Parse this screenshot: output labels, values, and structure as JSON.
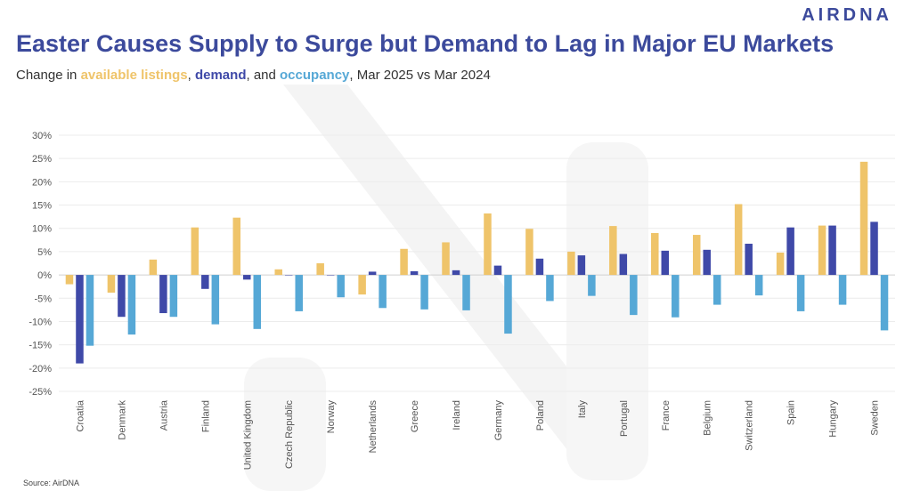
{
  "brand": {
    "logo_text": "AIRDNA"
  },
  "header": {
    "title": "Easter Causes Supply to Surge but Demand to Lag in Major EU Markets",
    "subtitle_prefix": "Change in ",
    "subtitle_listings": "available listings",
    "subtitle_sep1": ", ",
    "subtitle_demand": "demand",
    "subtitle_sep2": ", and ",
    "subtitle_occupancy": "occupancy",
    "subtitle_suffix": ", Mar 2025 vs Mar 2024"
  },
  "footer": {
    "source": "Source: AirDNA"
  },
  "colors": {
    "listings": "#efc46a",
    "demand": "#3f49a8",
    "occupancy": "#56a8d6",
    "title": "#3c4a9c"
  },
  "chart_data": {
    "type": "bar",
    "categories": [
      "Croatia",
      "Denmark",
      "Austria",
      "Finland",
      "United Kingdom",
      "Czech Republic",
      "Norway",
      "Netherlands",
      "Greece",
      "Ireland",
      "Germany",
      "Poland",
      "Italy",
      "Portugal",
      "France",
      "Belgium",
      "Switzerland",
      "Spain",
      "Hungary",
      "Sweden"
    ],
    "series": [
      {
        "name": "available listings",
        "values": [
          -2.0,
          -3.8,
          3.3,
          10.2,
          12.3,
          1.2,
          2.5,
          -4.2,
          5.6,
          7.0,
          13.2,
          9.9,
          5.0,
          10.5,
          9.0,
          8.6,
          15.2,
          4.8,
          10.6,
          24.3
        ]
      },
      {
        "name": "demand",
        "values": [
          -19.0,
          -9.0,
          -8.2,
          -3.0,
          -1.0,
          0.0,
          0.0,
          0.7,
          0.8,
          1.0,
          2.0,
          3.5,
          4.2,
          4.5,
          5.2,
          5.4,
          6.7,
          10.2,
          10.6,
          11.4
        ]
      },
      {
        "name": "occupancy",
        "values": [
          -15.2,
          -12.8,
          -9.0,
          -10.6,
          -11.6,
          -7.8,
          -4.8,
          -7.1,
          -7.4,
          -7.6,
          -12.6,
          -5.6,
          -4.5,
          -8.6,
          -9.1,
          -6.4,
          -4.4,
          -7.8,
          -6.4,
          -11.9
        ]
      }
    ],
    "y_ticks": [
      "30%",
      "25%",
      "20%",
      "15%",
      "10%",
      "5%",
      "0%",
      "-5%",
      "-10%",
      "-15%",
      "-20%",
      "-25%"
    ],
    "ylim": [
      -25,
      30
    ],
    "grid": true,
    "legend": "none"
  }
}
